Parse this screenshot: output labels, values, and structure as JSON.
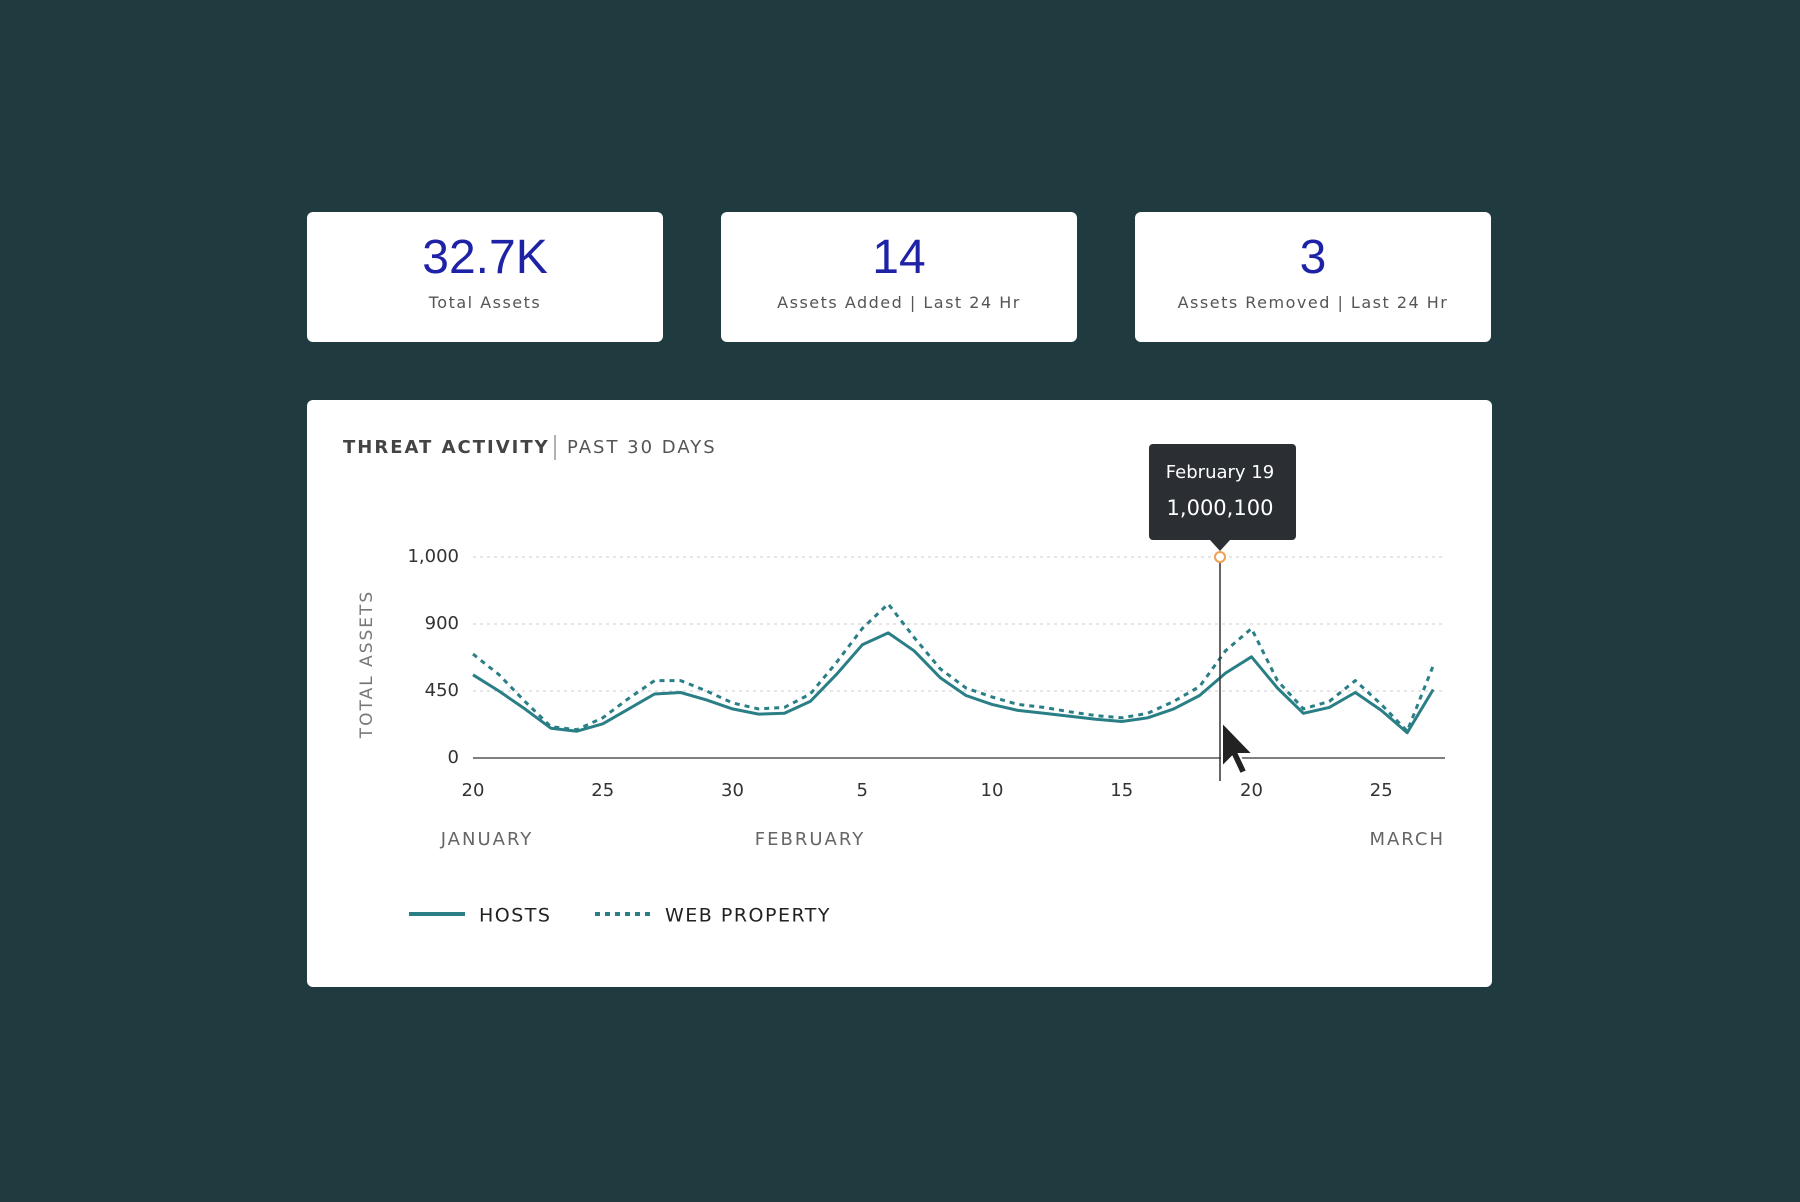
{
  "cards": [
    {
      "value": "32.7K",
      "label": "Total Assets"
    },
    {
      "value": "14",
      "label": "Assets Added | Last 24 Hr"
    },
    {
      "value": "3",
      "label": "Assets Removed | Last 24 Hr"
    }
  ],
  "chart_data": {
    "type": "line",
    "title": "THREAT ACTIVITY",
    "subtitle": "PAST 30 DAYS",
    "ylabel": "TOTAL ASSETS",
    "categories": [
      "20",
      null,
      null,
      null,
      null,
      "25",
      null,
      null,
      null,
      null,
      "30",
      null,
      null,
      null,
      null,
      "5",
      null,
      null,
      null,
      null,
      "10",
      null,
      null,
      null,
      null,
      "15",
      null,
      null,
      null,
      null,
      "20",
      null,
      null,
      null,
      null,
      "25",
      null,
      null
    ],
    "months": [
      "JANUARY",
      "FEBRUARY",
      "MARCH"
    ],
    "series": [
      {
        "name": "HOSTS",
        "color": "#2a7f86",
        "line_style": "solid",
        "values": [
          559,
          450,
          330,
          200,
          180,
          230,
          330,
          430,
          440,
          390,
          330,
          295,
          300,
          380,
          560,
          760,
          840,
          720,
          540,
          420,
          360,
          320,
          300,
          280,
          260,
          245,
          270,
          330,
          420,
          570,
          680,
          470,
          300,
          340,
          440,
          320,
          170,
          460
        ]
      },
      {
        "name": "WEB PROPERTY",
        "color": "#2a7f86",
        "line_style": "dotted",
        "values": [
          698,
          560,
          380,
          210,
          190,
          270,
          400,
          520,
          520,
          450,
          370,
          330,
          340,
          430,
          640,
          870,
          930,
          810,
          600,
          470,
          410,
          360,
          340,
          310,
          285,
          270,
          300,
          380,
          480,
          720,
          870,
          520,
          330,
          380,
          520,
          360,
          180,
          620
        ]
      }
    ],
    "ylim": [
      0,
      1000
    ],
    "yticks": [
      0,
      450,
      900,
      {
        "value": 1000,
        "label": "1,000"
      }
    ],
    "grid": true,
    "tooltip": {
      "date": "February 19",
      "value": "1,000,100"
    }
  }
}
